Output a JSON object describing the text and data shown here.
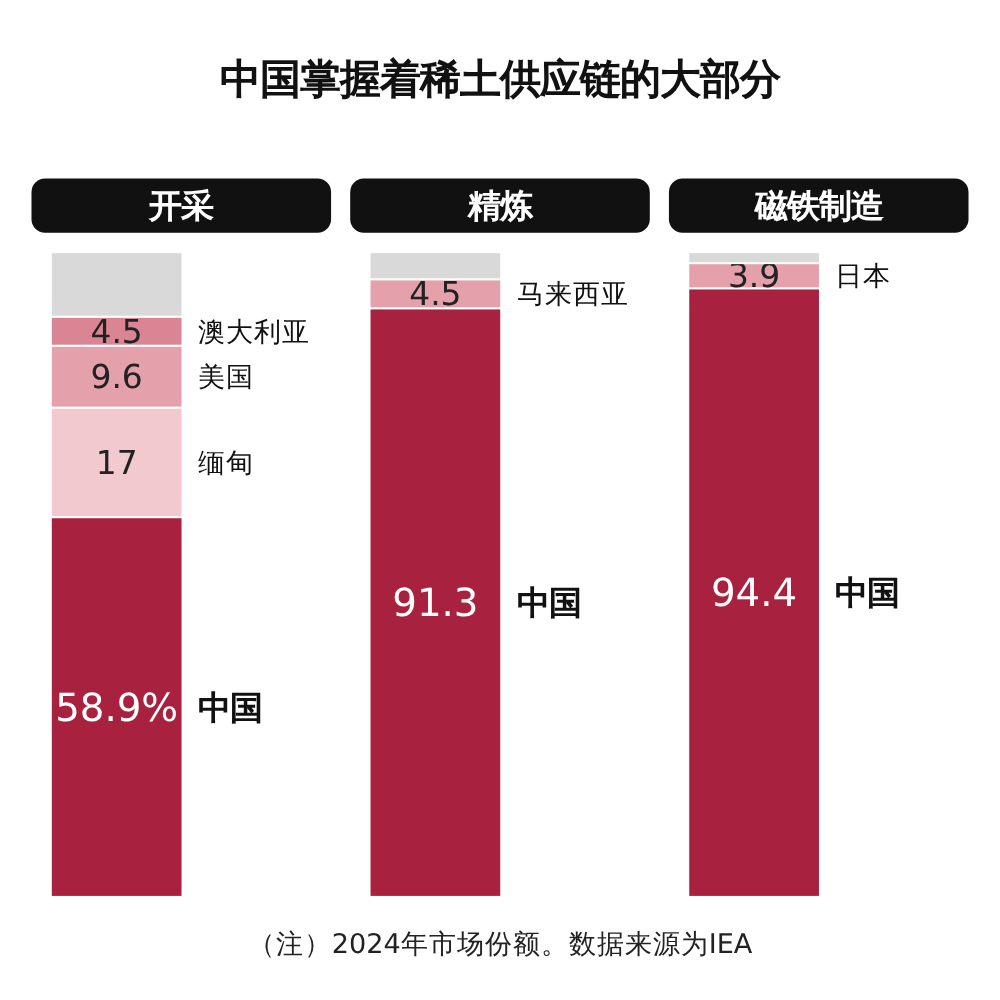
{
  "chart_data": {
    "type": "bar",
    "title": "中国掌握着稀土供应链的大部分",
    "categories": [
      "开采",
      "精炼",
      "磁铁制造"
    ],
    "stacked": true,
    "ylim": [
      0,
      100
    ],
    "legend": false,
    "series": [
      {
        "name": "中国",
        "color": "#a8213f",
        "values": [
          58.9,
          91.3,
          94.4
        ],
        "value_labels": [
          "58.9%",
          "91.3",
          "94.4"
        ]
      },
      {
        "name": "缅甸",
        "color": "#f2c9cf",
        "values": [
          17,
          null,
          null
        ],
        "value_labels": [
          "17",
          null,
          null
        ]
      },
      {
        "name": "美国",
        "color": "#e4a1ac",
        "values": [
          9.6,
          null,
          null
        ],
        "value_labels": [
          "9.6",
          null,
          null
        ]
      },
      {
        "name": "澳大利亚",
        "color": "#d98593",
        "values": [
          4.5,
          null,
          null
        ],
        "value_labels": [
          "4.5",
          null,
          null
        ]
      },
      {
        "name": "马来西亚",
        "color": "#e4a1ac",
        "values": [
          null,
          4.5,
          null
        ],
        "value_labels": [
          null,
          "4.5",
          null
        ]
      },
      {
        "name": "日本",
        "color": "#e4a1ac",
        "values": [
          null,
          null,
          3.9
        ],
        "value_labels": [
          null,
          null,
          "3.9"
        ]
      },
      {
        "color": "#d9d9d9",
        "values": [
          10.0,
          4.2,
          1.7
        ]
      }
    ],
    "annotations": [
      "（注）2024年市场份额。数据来源为IEA"
    ]
  }
}
